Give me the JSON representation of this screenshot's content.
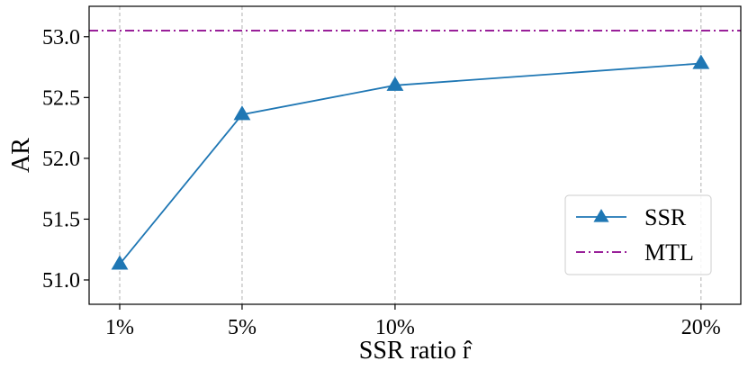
{
  "chart_data": {
    "type": "line",
    "xlabel": "SSR ratio r̂",
    "ylabel": "AR",
    "categories": [
      "1%",
      "5%",
      "10%",
      "20%"
    ],
    "x": [
      1,
      5,
      10,
      20
    ],
    "series": [
      {
        "name": "SSR",
        "values": [
          51.13,
          52.36,
          52.6,
          52.78
        ],
        "color": "#1f77b4",
        "marker": "triangle-up",
        "line_style": "solid"
      }
    ],
    "reference_lines": [
      {
        "name": "MTL",
        "y": 53.05,
        "color": "#8b008b",
        "line_style": "dash-dot"
      }
    ],
    "yticks": [
      51.0,
      51.5,
      52.0,
      52.5,
      53.0
    ],
    "ytick_labels": [
      "51.0",
      "51.5",
      "52.0",
      "52.5",
      "53.0"
    ],
    "ylim": [
      50.8,
      53.25
    ],
    "xlim": [
      0,
      21.3
    ],
    "grid": "vertical",
    "legend_position": "lower right"
  }
}
